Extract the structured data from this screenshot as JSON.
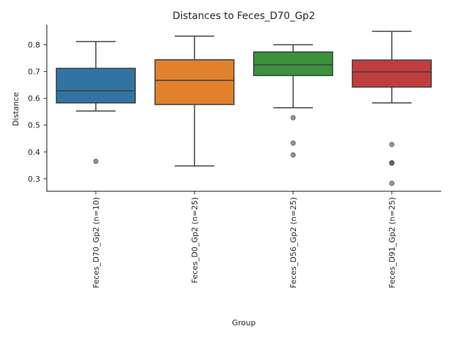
{
  "chart_data": {
    "type": "box",
    "title": "Distances to Feces_D70_Gp2",
    "xlabel": "Group",
    "ylabel": "Distance",
    "ylim": [
      0.255,
      0.875
    ],
    "yticks": [
      "0.3",
      "0.4",
      "0.5",
      "0.6",
      "0.7",
      "0.8"
    ],
    "grid": false,
    "categories": [
      "Feces_D70_Gp2 (n=10)",
      "Feces_D0_Gp2 (n=25)",
      "Feces_D56_Gp2 (n=25)",
      "Feces_D91_Gp2 (n=25)"
    ],
    "boxes": [
      {
        "color": "#3274a1",
        "whisker_low": 0.553,
        "q1": 0.583,
        "median": 0.628,
        "q3": 0.712,
        "whisker_high": 0.812,
        "outliers": [
          0.365
        ]
      },
      {
        "color": "#e1812c",
        "whisker_low": 0.348,
        "q1": 0.577,
        "median": 0.667,
        "q3": 0.744,
        "whisker_high": 0.832,
        "outliers": []
      },
      {
        "color": "#3a923a",
        "whisker_low": 0.565,
        "q1": 0.685,
        "median": 0.725,
        "q3": 0.773,
        "whisker_high": 0.8,
        "outliers": [
          0.528,
          0.433,
          0.389
        ]
      },
      {
        "color": "#c03d3e",
        "whisker_low": 0.583,
        "q1": 0.642,
        "median": 0.699,
        "q3": 0.743,
        "whisker_high": 0.85,
        "outliers": [
          0.428,
          0.36,
          0.358,
          0.283
        ]
      }
    ]
  }
}
